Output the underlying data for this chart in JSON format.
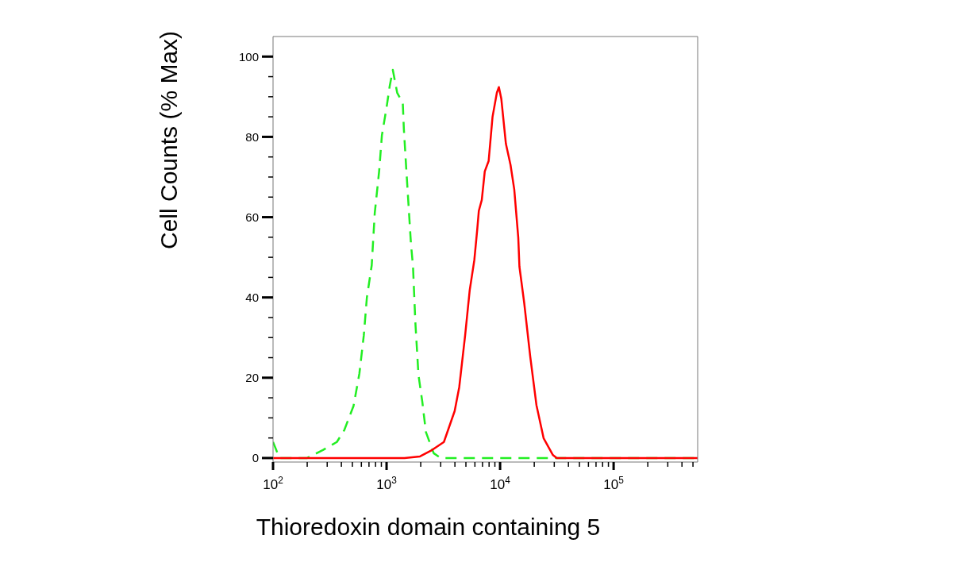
{
  "chart_data": {
    "type": "line",
    "xlabel": "Thioredoxin domain containing 5",
    "ylabel": "Cell Counts (% Max)",
    "log": "x",
    "xlim": [
      100,
      550000
    ],
    "ylim": [
      -1,
      105
    ],
    "xticks": [
      {
        "value": 100,
        "label": "10$^{2}$"
      },
      {
        "value": 200,
        "label": null
      },
      {
        "value": 300,
        "label": null
      },
      {
        "value": 400,
        "label": null
      },
      {
        "value": 500,
        "label": null
      },
      {
        "value": 600,
        "label": null
      },
      {
        "value": 700,
        "label": null
      },
      {
        "value": 800,
        "label": null
      },
      {
        "value": 900,
        "label": null
      },
      {
        "value": 1000,
        "label": "10$^{3}$"
      },
      {
        "value": 2000,
        "label": null
      },
      {
        "value": 3000,
        "label": null
      },
      {
        "value": 4000,
        "label": null
      },
      {
        "value": 5000,
        "label": null
      },
      {
        "value": 6000,
        "label": null
      },
      {
        "value": 7000,
        "label": null
      },
      {
        "value": 8000,
        "label": null
      },
      {
        "value": 9000,
        "label": null
      },
      {
        "value": 10000,
        "label": "10$^{4}$"
      },
      {
        "value": 20000,
        "label": null
      },
      {
        "value": 30000,
        "label": null
      },
      {
        "value": 40000,
        "label": null
      },
      {
        "value": 50000,
        "label": null
      },
      {
        "value": 60000,
        "label": null
      },
      {
        "value": 70000,
        "label": null
      },
      {
        "value": 80000,
        "label": null
      },
      {
        "value": 90000,
        "label": null
      },
      {
        "value": 100000,
        "label": "10$^{5}$"
      },
      {
        "value": 200000,
        "label": null
      },
      {
        "value": 300000,
        "label": null
      },
      {
        "value": 400000,
        "label": null
      },
      {
        "value": 500000,
        "label": null
      }
    ],
    "yticks": [
      0,
      {
        "value": 5,
        "label": null
      },
      {
        "value": 10,
        "label": null
      },
      {
        "value": 15,
        "label": null
      },
      20,
      {
        "value": 25,
        "label": null
      },
      {
        "value": 30,
        "label": null
      },
      {
        "value": 35,
        "label": null
      },
      40,
      {
        "value": 45,
        "label": null
      },
      {
        "value": 50,
        "label": null
      },
      {
        "value": 55,
        "label": null
      },
      60,
      {
        "value": 65,
        "label": null
      },
      {
        "value": 70,
        "label": null
      },
      {
        "value": 75,
        "label": null
      },
      80,
      {
        "value": 85,
        "label": null
      },
      {
        "value": 90,
        "label": null
      },
      {
        "value": 95,
        "label": null
      },
      100
    ],
    "series": [
      {
        "color": "#22ee22",
        "line_style": "dashed",
        "x": [
          100,
          114,
          200,
          275,
          365,
          425,
          512,
          576,
          630,
          671,
          740,
          787,
          860,
          910,
          1000,
          1065,
          1135,
          1240,
          1390,
          1420,
          1490,
          1560,
          1640,
          1710,
          1790,
          1910,
          2065,
          2220,
          2600,
          3000,
          550000
        ],
        "values": [
          4,
          0,
          0,
          2,
          4,
          7,
          13,
          21,
          30.5,
          40,
          48,
          61,
          71.4,
          80.4,
          87.3,
          92.6,
          96.7,
          91,
          88.4,
          82,
          72.2,
          63.2,
          53.4,
          47.7,
          34.2,
          20.7,
          14,
          6.5,
          1.2,
          0,
          0
        ]
      },
      {
        "color": "#ff0000",
        "line_style": "solid",
        "x": [
          100,
          1440,
          1970,
          2520,
          3200,
          3980,
          4370,
          4920,
          5400,
          5930,
          6300,
          6500,
          6900,
          7330,
          7930,
          8580,
          9370,
          9760,
          10250,
          11250,
          12360,
          13330,
          14460,
          14800,
          16300,
          18450,
          20900,
          24200,
          29100,
          31600,
          550000
        ],
        "values": [
          0,
          0,
          0.4,
          2,
          4,
          11.7,
          17.7,
          30.5,
          41.8,
          49.3,
          57.1,
          61.6,
          64.3,
          71.4,
          74,
          85,
          91,
          92.4,
          89.5,
          78.3,
          73,
          66.9,
          54.9,
          47.7,
          38.7,
          25.2,
          13.2,
          4.9,
          0.8,
          0,
          0
        ]
      }
    ]
  }
}
